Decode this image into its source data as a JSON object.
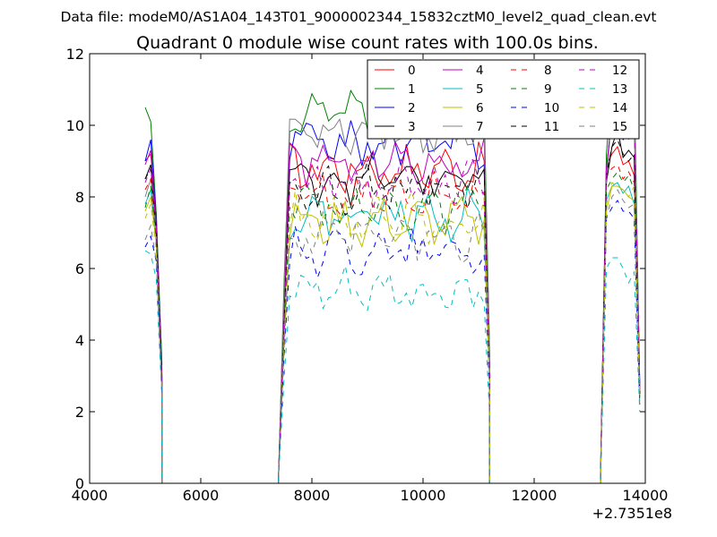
{
  "chart_data": {
    "type": "line",
    "suptitle": "Data file: modeM0/AS1A04_143T01_9000002344_15832cztM0_level2_quad_clean.evt",
    "title": "Quadrant 0 module wise count rates with 100.0s bins.",
    "xlabel": "",
    "ylabel": "",
    "x_offset_label": "+2.7351e8",
    "xlim": [
      4000,
      14000
    ],
    "ylim": [
      0,
      12
    ],
    "xticks": [
      4000,
      6000,
      8000,
      10000,
      12000,
      14000
    ],
    "yticks": [
      0,
      2,
      4,
      6,
      8,
      10,
      12
    ],
    "xtick_labels": [
      "4000",
      "6000",
      "8000",
      "10000",
      "12000",
      "14000"
    ],
    "ytick_labels": [
      "0",
      "2",
      "4",
      "6",
      "8",
      "10",
      "12"
    ],
    "grid": false,
    "legend_position": "top-right",
    "legend_columns": 4,
    "segments": [
      {
        "start": 5000,
        "step": 100,
        "count": 4
      },
      {
        "start": 7400,
        "step": 100,
        "count": 39
      },
      {
        "start": 13200,
        "step": 100,
        "count": 8
      }
    ],
    "gaps": [
      {
        "x": [
          5300,
          7400
        ],
        "value": 0
      },
      {
        "x": [
          11200,
          13200
        ],
        "value": 0
      }
    ],
    "series": [
      {
        "name": "0",
        "color": "#ff0000",
        "dash": false,
        "level": 8.8,
        "segA": [
          9.0,
          9.2,
          7.5,
          3.0
        ],
        "segC": [
          0.8,
          8.9,
          9.2,
          9.4,
          8.9,
          9.0,
          8.6,
          2.5
        ]
      },
      {
        "name": "1",
        "color": "#008000",
        "dash": false,
        "level": 10.3,
        "segA": [
          10.5,
          10.1,
          7.5,
          3.4
        ],
        "segC": [
          0.7,
          9.2,
          11.3,
          10.2,
          9.9,
          10.2,
          11.4,
          2.7
        ]
      },
      {
        "name": "2",
        "color": "#0000ff",
        "dash": false,
        "level": 9.5,
        "segA": [
          9.0,
          9.6,
          7.3,
          3.1
        ],
        "segC": [
          0.7,
          8.7,
          10.4,
          10.2,
          9.6,
          9.8,
          10.4,
          2.8
        ]
      },
      {
        "name": "3",
        "color": "#000000",
        "dash": false,
        "level": 8.5,
        "segA": [
          8.5,
          8.9,
          7.2,
          3.0
        ],
        "segC": [
          0.6,
          8.4,
          9.4,
          9.9,
          9.1,
          9.3,
          9.1,
          2.5
        ]
      },
      {
        "name": "4",
        "color": "#bf00bf",
        "dash": false,
        "level": 9.0,
        "segA": [
          8.9,
          9.3,
          7.2,
          2.9
        ],
        "segC": [
          0.7,
          8.8,
          10.2,
          10.0,
          9.8,
          9.7,
          10.1,
          2.6
        ]
      },
      {
        "name": "5",
        "color": "#00bfbf",
        "dash": false,
        "level": 7.5,
        "segA": [
          7.8,
          8.2,
          6.8,
          2.8
        ],
        "segC": [
          0.5,
          7.9,
          8.3,
          8.4,
          8.1,
          8.3,
          7.8,
          2.3
        ]
      },
      {
        "name": "6",
        "color": "#bfbf00",
        "dash": false,
        "level": 7.3,
        "segA": [
          7.6,
          8.0,
          6.7,
          2.7
        ],
        "segC": [
          0.5,
          7.6,
          8.3,
          8.3,
          8.2,
          8.0,
          7.9,
          2.4
        ]
      },
      {
        "name": "7",
        "color": "#808080",
        "dash": false,
        "level": 9.9,
        "segA": [
          8.0,
          8.5,
          7.0,
          2.8
        ],
        "segC": [
          0.6,
          8.4,
          10.4,
          10.6,
          11.0,
          9.6,
          10.6,
          2.6
        ]
      },
      {
        "name": "8",
        "color": "#ff0000",
        "dash": true,
        "level": 8.0,
        "segA": [
          8.2,
          8.5,
          7.0,
          2.8
        ],
        "segC": [
          0.6,
          8.6,
          8.8,
          8.9,
          8.5,
          8.7,
          8.4,
          2.5
        ]
      },
      {
        "name": "9",
        "color": "#008000",
        "dash": true,
        "level": 7.7,
        "segA": [
          7.7,
          8.3,
          6.8,
          2.8
        ],
        "segC": [
          0.5,
          8.2,
          8.5,
          8.7,
          8.4,
          8.6,
          8.2,
          2.4
        ]
      },
      {
        "name": "10",
        "color": "#0000ff",
        "dash": true,
        "level": 6.5,
        "segA": [
          6.6,
          6.9,
          6.2,
          2.6
        ],
        "segC": [
          0.5,
          7.4,
          7.7,
          7.9,
          7.6,
          7.6,
          7.4,
          2.2
        ]
      },
      {
        "name": "11",
        "color": "#000000",
        "dash": true,
        "level": 8.2,
        "segA": [
          8.5,
          8.8,
          7.1,
          2.9
        ],
        "segC": [
          0.6,
          8.6,
          9.4,
          9.6,
          9.2,
          9.0,
          9.2,
          2.5
        ]
      },
      {
        "name": "12",
        "color": "#bf00bf",
        "dash": true,
        "level": 8.4,
        "segA": [
          8.4,
          8.8,
          7.1,
          2.8
        ],
        "segC": [
          0.6,
          8.8,
          10.2,
          10.3,
          10.1,
          9.6,
          10.3,
          2.6
        ]
      },
      {
        "name": "13",
        "color": "#00bfbf",
        "dash": true,
        "level": 5.3,
        "segA": [
          6.5,
          6.4,
          5.7,
          2.4
        ],
        "segC": [
          0.4,
          6.0,
          6.3,
          6.3,
          6.0,
          5.6,
          5.9,
          2.0
        ]
      },
      {
        "name": "14",
        "color": "#bfbf00",
        "dash": true,
        "level": 7.4,
        "segA": [
          7.4,
          7.8,
          6.5,
          2.7
        ],
        "segC": [
          0.5,
          7.8,
          8.4,
          8.3,
          8.2,
          8.0,
          8.3,
          2.4
        ]
      },
      {
        "name": "15",
        "color": "#808080",
        "dash": true,
        "level": 6.8,
        "segA": [
          6.8,
          7.2,
          6.2,
          2.6
        ],
        "segC": [
          0.5,
          7.4,
          8.0,
          8.2,
          7.9,
          7.7,
          7.8,
          2.2
        ]
      }
    ]
  }
}
